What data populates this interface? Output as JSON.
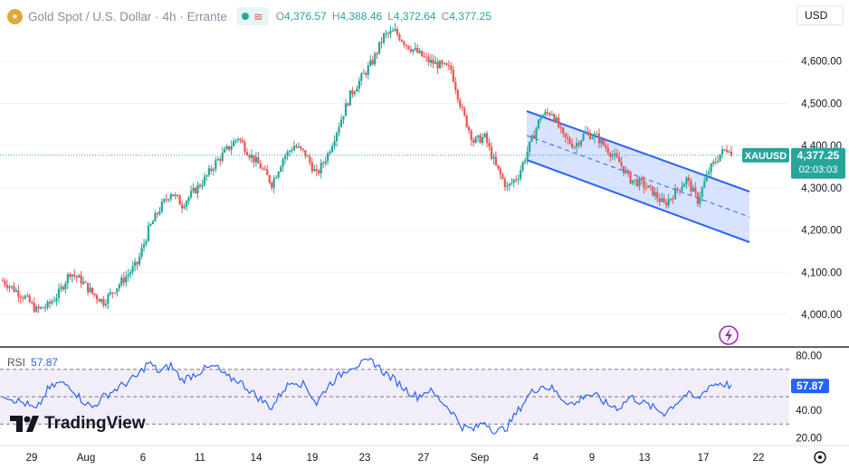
{
  "header": {
    "symbol_title": "Gold Spot / U.S. Dollar · 4h · Errante",
    "open_key": "O",
    "open": "4,376.57",
    "high_key": "H",
    "high": "4,388.46",
    "low_key": "L",
    "low": "4,372.64",
    "close_key": "C",
    "close": "4,377.25",
    "currency": "USD"
  },
  "price_tag": {
    "ticker": "XAUUSD",
    "price": "4,377.25",
    "countdown": "02:03:03"
  },
  "rsi": {
    "label": "RSI",
    "value": "57.87",
    "axis_ticks": [
      "80.00",
      "40.00",
      "20.00"
    ]
  },
  "brand": "TradingView",
  "colors": {
    "up": "#26a69a",
    "down": "#ef5350",
    "channel": "#2962ff",
    "rsi_line": "#2962ff"
  },
  "icons": {
    "flash": "lightning-icon",
    "settings": "gear-icon",
    "logo": "tradingview-logo-icon"
  },
  "chart_data": {
    "type": "candlestick",
    "timeframe": "4h",
    "y_ticks": [
      4600,
      4500,
      4400,
      4300,
      4200,
      4100,
      4000
    ],
    "y_tick_labels": [
      "4,600.00",
      "4,500.00",
      "4,400.00",
      "4,300.00",
      "4,200.00",
      "4,100.00",
      "4,000.00"
    ],
    "ylim": [
      3925,
      4745
    ],
    "x_tick_labels": [
      "29",
      "Aug",
      "6",
      "11",
      "14",
      "19",
      "23",
      "27",
      "Sep",
      "4",
      "9",
      "13",
      "17",
      "22"
    ],
    "last_close": 4377.25,
    "close_path": [
      [
        0,
        4080
      ],
      [
        5,
        4060
      ],
      [
        10,
        4040
      ],
      [
        15,
        4010
      ],
      [
        20,
        4020
      ],
      [
        25,
        4050
      ],
      [
        30,
        4100
      ],
      [
        35,
        4080
      ],
      [
        40,
        4050
      ],
      [
        45,
        4030
      ],
      [
        50,
        4060
      ],
      [
        55,
        4090
      ],
      [
        60,
        4120
      ],
      [
        65,
        4200
      ],
      [
        70,
        4250
      ],
      [
        75,
        4290
      ],
      [
        80,
        4260
      ],
      [
        85,
        4290
      ],
      [
        90,
        4320
      ],
      [
        95,
        4360
      ],
      [
        100,
        4390
      ],
      [
        105,
        4420
      ],
      [
        110,
        4380
      ],
      [
        115,
        4350
      ],
      [
        120,
        4310
      ],
      [
        125,
        4370
      ],
      [
        130,
        4400
      ],
      [
        135,
        4380
      ],
      [
        140,
        4330
      ],
      [
        145,
        4380
      ],
      [
        150,
        4450
      ],
      [
        155,
        4520
      ],
      [
        160,
        4560
      ],
      [
        165,
        4600
      ],
      [
        170,
        4660
      ],
      [
        175,
        4670
      ],
      [
        180,
        4640
      ],
      [
        185,
        4620
      ],
      [
        190,
        4600
      ],
      [
        195,
        4590
      ],
      [
        200,
        4580
      ],
      [
        205,
        4480
      ],
      [
        210,
        4410
      ],
      [
        215,
        4420
      ],
      [
        220,
        4350
      ],
      [
        225,
        4300
      ],
      [
        230,
        4330
      ],
      [
        235,
        4400
      ],
      [
        240,
        4470
      ],
      [
        245,
        4480
      ],
      [
        250,
        4420
      ],
      [
        255,
        4400
      ],
      [
        260,
        4430
      ],
      [
        265,
        4420
      ],
      [
        270,
        4390
      ],
      [
        275,
        4360
      ],
      [
        280,
        4320
      ],
      [
        285,
        4310
      ],
      [
        290,
        4290
      ],
      [
        295,
        4260
      ],
      [
        300,
        4290
      ],
      [
        305,
        4320
      ],
      [
        310,
        4270
      ],
      [
        315,
        4340
      ],
      [
        320,
        4380
      ],
      [
        325,
        4400
      ]
    ],
    "rsi_ylim": [
      15,
      85
    ],
    "rsi_levels": [
      70,
      50,
      30
    ],
    "rsi_path": [
      [
        0,
        52
      ],
      [
        5,
        48
      ],
      [
        10,
        45
      ],
      [
        15,
        40
      ],
      [
        20,
        55
      ],
      [
        25,
        60
      ],
      [
        30,
        58
      ],
      [
        35,
        48
      ],
      [
        40,
        42
      ],
      [
        45,
        50
      ],
      [
        50,
        55
      ],
      [
        55,
        60
      ],
      [
        60,
        65
      ],
      [
        65,
        75
      ],
      [
        70,
        68
      ],
      [
        75,
        73
      ],
      [
        80,
        62
      ],
      [
        85,
        66
      ],
      [
        90,
        70
      ],
      [
        95,
        72
      ],
      [
        100,
        64
      ],
      [
        105,
        62
      ],
      [
        110,
        55
      ],
      [
        115,
        48
      ],
      [
        120,
        42
      ],
      [
        125,
        55
      ],
      [
        130,
        62
      ],
      [
        135,
        58
      ],
      [
        140,
        45
      ],
      [
        145,
        58
      ],
      [
        150,
        65
      ],
      [
        155,
        72
      ],
      [
        160,
        74
      ],
      [
        165,
        76
      ],
      [
        170,
        68
      ],
      [
        175,
        62
      ],
      [
        180,
        55
      ],
      [
        185,
        50
      ],
      [
        190,
        55
      ],
      [
        195,
        48
      ],
      [
        200,
        40
      ],
      [
        205,
        28
      ],
      [
        210,
        26
      ],
      [
        215,
        32
      ],
      [
        220,
        24
      ],
      [
        225,
        28
      ],
      [
        230,
        40
      ],
      [
        235,
        52
      ],
      [
        240,
        58
      ],
      [
        245,
        56
      ],
      [
        250,
        48
      ],
      [
        255,
        44
      ],
      [
        260,
        52
      ],
      [
        265,
        50
      ],
      [
        270,
        44
      ],
      [
        275,
        42
      ],
      [
        280,
        50
      ],
      [
        285,
        46
      ],
      [
        290,
        42
      ],
      [
        295,
        38
      ],
      [
        300,
        45
      ],
      [
        305,
        52
      ],
      [
        310,
        48
      ],
      [
        315,
        58
      ],
      [
        320,
        60
      ],
      [
        325,
        58
      ]
    ]
  }
}
